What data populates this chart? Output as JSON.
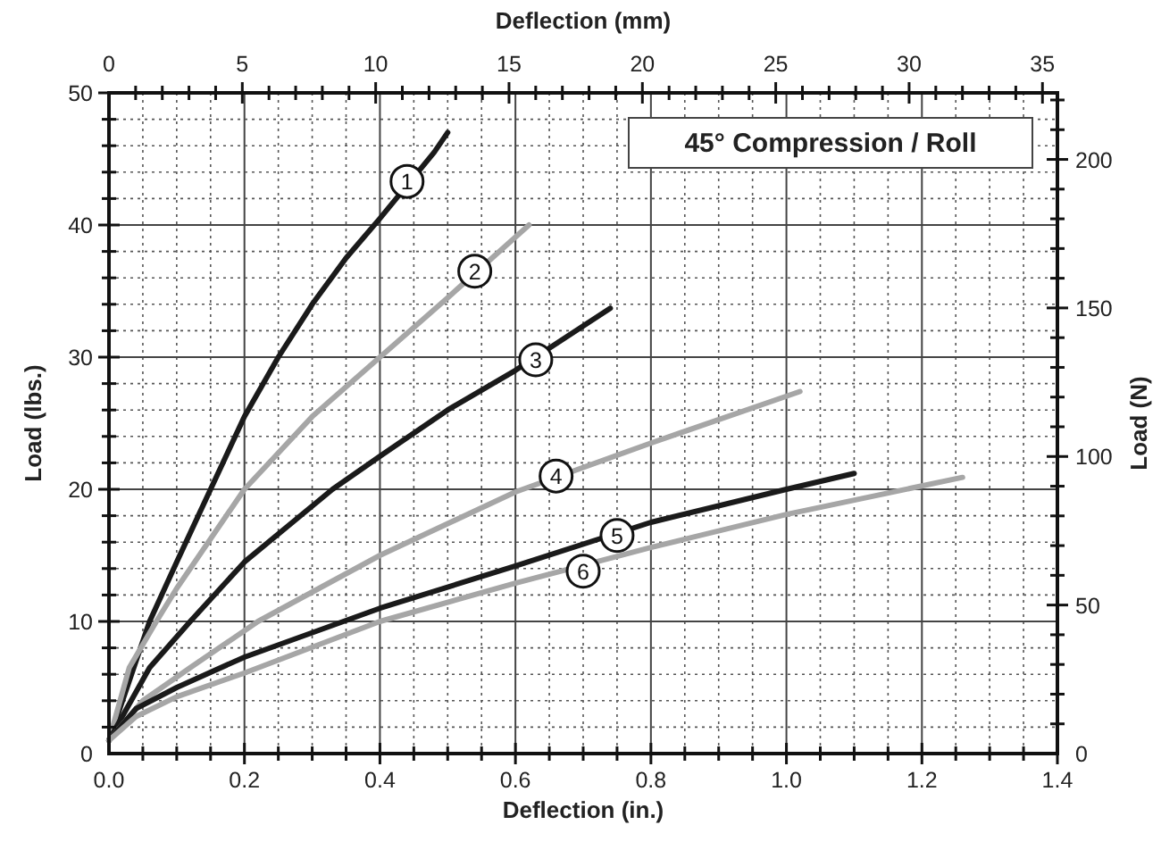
{
  "chart_data": {
    "type": "line",
    "title": "45° Compression / Roll",
    "xlabel": "Deflection (in.)",
    "ylabel": "Load (lbs.)",
    "x2label": "Deflection (mm)",
    "y2label": "Load (N)",
    "xlim": [
      0,
      1.4
    ],
    "ylim": [
      0,
      50
    ],
    "x2lim": [
      0,
      35.56
    ],
    "y2lim": [
      0,
      222.4
    ],
    "xticks": [
      {
        "value": 0,
        "label": "0.0"
      },
      {
        "value": 0.05,
        "label": null
      },
      {
        "value": 0.1,
        "label": null
      },
      {
        "value": 0.15,
        "label": null
      },
      {
        "value": 0.2,
        "label": "0.2"
      },
      {
        "value": 0.25,
        "label": null
      },
      {
        "value": 0.3,
        "label": null
      },
      {
        "value": 0.35,
        "label": null
      },
      {
        "value": 0.4,
        "label": "0.4"
      },
      {
        "value": 0.45,
        "label": null
      },
      {
        "value": 0.5,
        "label": null
      },
      {
        "value": 0.55,
        "label": null
      },
      {
        "value": 0.6,
        "label": "0.6"
      },
      {
        "value": 0.65,
        "label": null
      },
      {
        "value": 0.7,
        "label": null
      },
      {
        "value": 0.75,
        "label": null
      },
      {
        "value": 0.8,
        "label": "0.8"
      },
      {
        "value": 0.85,
        "label": null
      },
      {
        "value": 0.9,
        "label": null
      },
      {
        "value": 0.95,
        "label": null
      },
      {
        "value": 1.0,
        "label": "1.0"
      },
      {
        "value": 1.05,
        "label": null
      },
      {
        "value": 1.1,
        "label": null
      },
      {
        "value": 1.15,
        "label": null
      },
      {
        "value": 1.2,
        "label": "1.2"
      },
      {
        "value": 1.25,
        "label": null
      },
      {
        "value": 1.3,
        "label": null
      },
      {
        "value": 1.35,
        "label": null
      },
      {
        "value": 1.4,
        "label": "1.4"
      }
    ],
    "yticks": [
      0,
      {
        "value": 2,
        "label": null
      },
      {
        "value": 4,
        "label": null
      },
      {
        "value": 6,
        "label": null
      },
      {
        "value": 8,
        "label": null
      },
      10,
      {
        "value": 12,
        "label": null
      },
      {
        "value": 14,
        "label": null
      },
      {
        "value": 16,
        "label": null
      },
      {
        "value": 18,
        "label": null
      },
      20,
      {
        "value": 22,
        "label": null
      },
      {
        "value": 24,
        "label": null
      },
      {
        "value": 26,
        "label": null
      },
      {
        "value": 28,
        "label": null
      },
      30,
      {
        "value": 32,
        "label": null
      },
      {
        "value": 34,
        "label": null
      },
      {
        "value": 36,
        "label": null
      },
      {
        "value": 38,
        "label": null
      },
      40,
      {
        "value": 42,
        "label": null
      },
      {
        "value": 44,
        "label": null
      },
      {
        "value": 46,
        "label": null
      },
      {
        "value": 48,
        "label": null
      },
      50
    ],
    "x2ticks": [
      0,
      {
        "value": 1,
        "label": null
      },
      {
        "value": 2,
        "label": null
      },
      {
        "value": 3,
        "label": null
      },
      {
        "value": 4,
        "label": null
      },
      5,
      {
        "value": 6,
        "label": null
      },
      {
        "value": 7,
        "label": null
      },
      {
        "value": 8,
        "label": null
      },
      {
        "value": 9,
        "label": null
      },
      10,
      {
        "value": 11,
        "label": null
      },
      {
        "value": 12,
        "label": null
      },
      {
        "value": 13,
        "label": null
      },
      {
        "value": 14,
        "label": null
      },
      15,
      {
        "value": 16,
        "label": null
      },
      {
        "value": 17,
        "label": null
      },
      {
        "value": 18,
        "label": null
      },
      {
        "value": 19,
        "label": null
      },
      20,
      {
        "value": 21,
        "label": null
      },
      {
        "value": 22,
        "label": null
      },
      {
        "value": 23,
        "label": null
      },
      {
        "value": 24,
        "label": null
      },
      25,
      {
        "value": 26,
        "label": null
      },
      {
        "value": 27,
        "label": null
      },
      {
        "value": 28,
        "label": null
      },
      {
        "value": 29,
        "label": null
      },
      30,
      {
        "value": 31,
        "label": null
      },
      {
        "value": 32,
        "label": null
      },
      {
        "value": 33,
        "label": null
      },
      {
        "value": 34,
        "label": null
      },
      35
    ],
    "y2ticks": [
      0,
      {
        "value": 10,
        "label": null
      },
      {
        "value": 20,
        "label": null
      },
      {
        "value": 30,
        "label": null
      },
      {
        "value": 40,
        "label": null
      },
      50,
      {
        "value": 60,
        "label": null
      },
      {
        "value": 70,
        "label": null
      },
      {
        "value": 80,
        "label": null
      },
      {
        "value": 90,
        "label": null
      },
      100,
      {
        "value": 110,
        "label": null
      },
      {
        "value": 120,
        "label": null
      },
      {
        "value": 130,
        "label": null
      },
      {
        "value": 140,
        "label": null
      },
      150,
      {
        "value": 160,
        "label": null
      },
      {
        "value": 170,
        "label": null
      },
      {
        "value": 180,
        "label": null
      },
      {
        "value": 190,
        "label": null
      },
      200,
      {
        "value": 210,
        "label": null
      },
      {
        "value": 220,
        "label": null
      }
    ],
    "grid": true,
    "line_style": "solid",
    "marker": "none",
    "series": [
      {
        "color": "#1a1a1a",
        "x": [
          0,
          0.02,
          0.04,
          0.06,
          0.1,
          0.15,
          0.2,
          0.25,
          0.3,
          0.35,
          0.4,
          0.48,
          0.5
        ],
        "values": [
          1,
          4,
          7,
          10,
          14.5,
          20,
          25.5,
          30,
          34,
          37.5,
          40.5,
          45.5,
          47
        ]
      },
      {
        "color": "#a6a6a6",
        "x": [
          0,
          0.03,
          0.07,
          0.1,
          0.2,
          0.3,
          0.4,
          0.5,
          0.62
        ],
        "values": [
          1,
          6.5,
          10,
          12.5,
          20,
          25.5,
          30,
          34.5,
          40
        ]
      },
      {
        "color": "#1a1a1a",
        "x": [
          0,
          0.06,
          0.12,
          0.2,
          0.33,
          0.4,
          0.5,
          0.6,
          0.74
        ],
        "values": [
          1,
          6.5,
          10,
          14.5,
          20,
          22.5,
          26,
          29,
          33.7
        ]
      },
      {
        "color": "#a6a6a6",
        "x": [
          0,
          0.05,
          0.12,
          0.22,
          0.4,
          0.6,
          0.8,
          1.02
        ],
        "values": [
          1,
          4,
          6.5,
          10,
          15,
          19.8,
          23.5,
          27.4
        ]
      },
      {
        "color": "#1a1a1a",
        "x": [
          0,
          0.04,
          0.1,
          0.2,
          0.4,
          0.6,
          0.8,
          1.0,
          1.1
        ],
        "values": [
          1,
          3.4,
          5,
          7.3,
          11,
          14.2,
          17.5,
          20,
          21.2
        ]
      },
      {
        "color": "#a6a6a6",
        "x": [
          0,
          0.04,
          0.1,
          0.2,
          0.4,
          0.6,
          0.8,
          1.0,
          1.26
        ],
        "values": [
          1,
          2.8,
          4.3,
          6.1,
          10,
          12.9,
          15.6,
          18.1,
          20.9
        ]
      }
    ],
    "annotations": [
      {
        "text": "1",
        "x": 0.44,
        "y": 43.3
      },
      {
        "text": "2",
        "x": 0.54,
        "y": 36.5
      },
      {
        "text": "3",
        "x": 0.63,
        "y": 29.8
      },
      {
        "text": "4",
        "x": 0.66,
        "y": 21
      },
      {
        "text": "5",
        "x": 0.75,
        "y": 16.5
      },
      {
        "text": "6",
        "x": 0.7,
        "y": 13.8
      }
    ]
  }
}
